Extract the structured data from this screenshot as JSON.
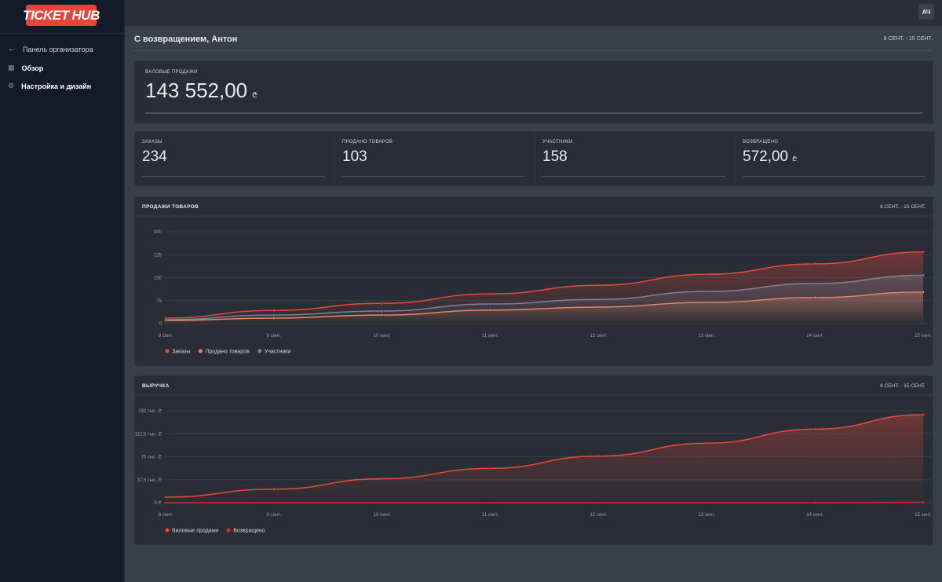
{
  "sidebar": {
    "logo": {
      "left": "TICKET",
      "right": "HUB"
    },
    "back": "Панель организатора",
    "nav": [
      "Обзор",
      "Настройка и дизайн"
    ]
  },
  "topbar": {
    "avatar": "АЧ"
  },
  "header": {
    "greeting": "С возвращением, Антон",
    "date_range": "8 СЕНТ. - 15 СЕНТ."
  },
  "gross": {
    "label": "ВАЛОВЫЕ ПРОДАЖИ",
    "value": "143 552,00",
    "currency": "₾"
  },
  "stats": [
    {
      "label": "ЗАКАЗЫ",
      "value": "234"
    },
    {
      "label": "ПРОДАНО ТОВАРОВ",
      "value": "103"
    },
    {
      "label": "УЧАСТНИКИ",
      "value": "158"
    },
    {
      "label": "ВОЗВРАЩЕНО",
      "value": "572,00",
      "currency": "₾"
    }
  ],
  "chart_data": [
    {
      "type": "line",
      "title": "ПРОДАЖИ ТОВАРОВ",
      "date_range": "8 СЕНТ. - 15 СЕНТ.",
      "categories": [
        "8 сент.",
        "9 сент.",
        "10 сент.",
        "11 сент.",
        "12 сент.",
        "13 сент.",
        "14 сент.",
        "15 сент."
      ],
      "series": [
        {
          "name": "Заказы",
          "color": "#e8493a",
          "values": [
            18,
            43,
            66,
            97,
            125,
            161,
            195,
            234
          ]
        },
        {
          "name": "Продано товаров",
          "color": "#f0875c",
          "values": [
            10,
            18,
            28,
            44,
            54,
            69,
            85,
            103
          ]
        },
        {
          "name": "Участники",
          "color": "#7d8299",
          "values": [
            13,
            28,
            41,
            64,
            79,
            105,
            131,
            158
          ]
        }
      ],
      "ylim": [
        0,
        300
      ],
      "yticks": [
        0,
        75,
        150,
        225,
        300
      ],
      "grid": true,
      "legend": "bottom-left"
    },
    {
      "type": "line",
      "title": "ВЫРУЧКА",
      "date_range": "8 СЕНТ. - 15 СЕНТ.",
      "categories": [
        "8 сент.",
        "9 сент.",
        "10 сент.",
        "11 сент.",
        "12 сент.",
        "13 сент.",
        "14 сент.",
        "15 сент."
      ],
      "series": [
        {
          "name": "Валовые продажи",
          "color": "#e8493a",
          "values": [
            9000,
            22000,
            39000,
            56000,
            76000,
            97000,
            120000,
            143552
          ]
        },
        {
          "name": "Возвращено",
          "color": "#c9302c",
          "values": [
            0,
            0,
            0,
            0,
            0,
            0,
            0,
            572
          ]
        }
      ],
      "ylim": [
        0,
        150000
      ],
      "yticks": [
        {
          "value": 0,
          "label": "0 ₾"
        },
        {
          "value": 37500,
          "label": "37,5 тыс. ₾"
        },
        {
          "value": 75000,
          "label": "75 тыс. ₾"
        },
        {
          "value": 112500,
          "label": "112,5 тыс. ₾"
        },
        {
          "value": 150000,
          "label": "150 тыс. ₾"
        }
      ],
      "grid": true,
      "legend": "bottom-left"
    }
  ]
}
